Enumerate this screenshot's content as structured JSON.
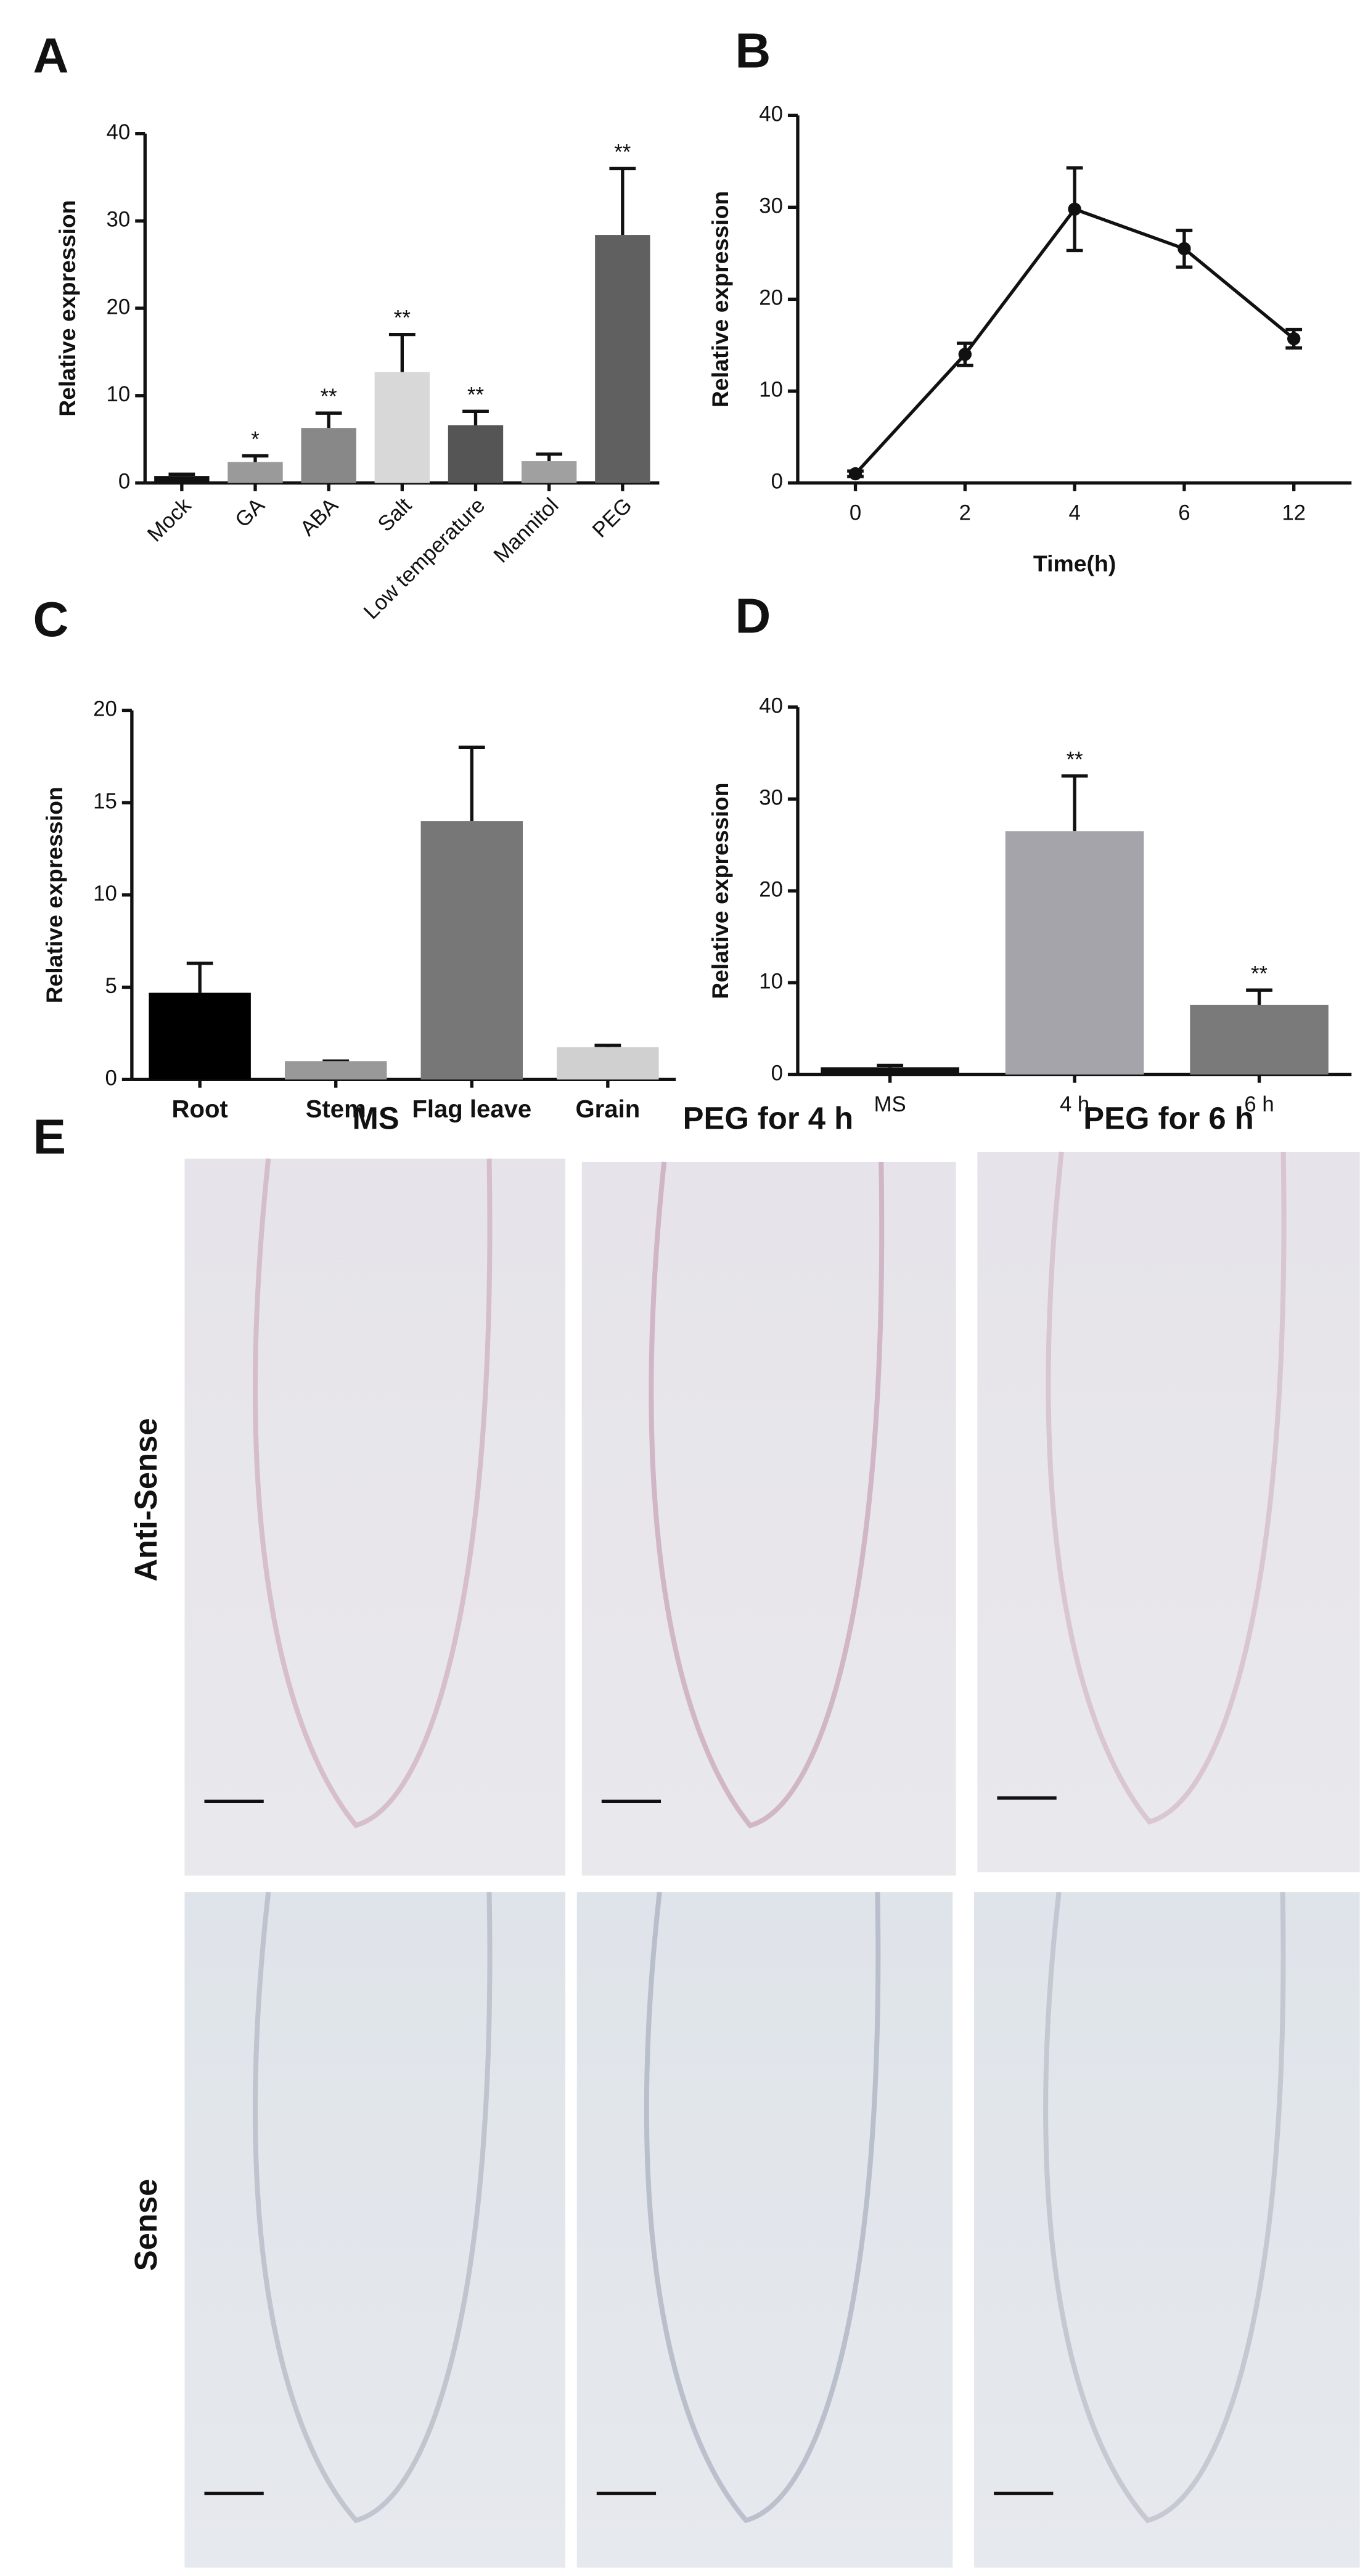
{
  "chart_data": [
    {
      "type": "bar",
      "label": "A",
      "ylabel": "Relative expression",
      "categories": [
        "Mock",
        "GA",
        "ABA",
        "Salt",
        "Low temperature",
        "Mannitol",
        "PEG"
      ],
      "values": [
        0.8,
        2.4,
        6.3,
        12.7,
        6.6,
        2.5,
        28.4
      ],
      "errors": [
        0.2,
        0.7,
        1.7,
        4.3,
        1.6,
        0.8,
        7.6
      ],
      "annotations": [
        null,
        "*",
        "**",
        "**",
        "**",
        null,
        "**"
      ],
      "colors": [
        "#111111",
        "#9a9a9a",
        "#888888",
        "#d8d8d8",
        "#555555",
        "#a0a0a0",
        "#606060"
      ],
      "ylim": [
        0,
        40
      ],
      "yticks": [
        0,
        10,
        20,
        30,
        40
      ],
      "rotate_labels": true
    },
    {
      "type": "line",
      "label": "B",
      "ylabel": "Relative expression",
      "xlabel": "Time(h)",
      "categories": [
        "0",
        "2",
        "4",
        "6",
        "12"
      ],
      "values": [
        1.0,
        14.0,
        29.8,
        25.5,
        15.7
      ],
      "errors": [
        0.3,
        1.2,
        4.5,
        2.0,
        1.0
      ],
      "color": "#111111",
      "ylim": [
        0,
        40
      ],
      "yticks": [
        0,
        10,
        20,
        30,
        40
      ]
    },
    {
      "type": "bar",
      "label": "C",
      "ylabel": "Relative expression",
      "categories": [
        "Root",
        "Stem",
        "Flag leave",
        "Grain"
      ],
      "values": [
        4.7,
        1.0,
        14.0,
        1.75
      ],
      "errors": [
        1.6,
        0,
        4.0,
        0.1
      ],
      "colors": [
        "#000000",
        "#999999",
        "#777777",
        "#d0d0d0"
      ],
      "ylim": [
        0,
        20
      ],
      "yticks": [
        0,
        5,
        10,
        15,
        20
      ],
      "rotate_labels": false
    },
    {
      "type": "bar",
      "label": "D",
      "ylabel": "Relative expression",
      "categories": [
        "MS",
        "4 h",
        "6 h"
      ],
      "values": [
        0.8,
        26.5,
        7.6
      ],
      "errors": [
        0.2,
        6.0,
        1.6
      ],
      "annotations": [
        null,
        "**",
        "**"
      ],
      "colors": [
        "#111111",
        "#a4a4aa",
        "#7a7a7a"
      ],
      "ylim": [
        0,
        40
      ],
      "yticks": [
        0,
        10,
        20,
        30,
        40
      ],
      "rotate_labels": false
    }
  ],
  "panel_e": {
    "label": "E",
    "columns": [
      "MS",
      "PEG for 4 h",
      "PEG for 6 h"
    ],
    "rows": [
      "Anti-Sense",
      "Sense"
    ]
  }
}
